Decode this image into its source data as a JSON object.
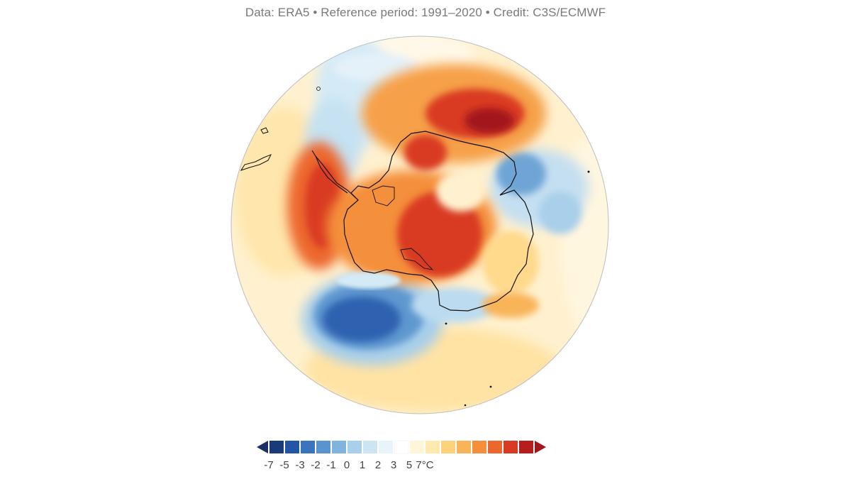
{
  "credit": "Data: ERA5 • Reference period: 1991–2020 • Credit: C3S/ECMWF",
  "map": {
    "projection": "south-polar-stereographic",
    "variable": "temperature anomaly"
  },
  "legend": {
    "unit": "°C",
    "colors": [
      "#1a3a7a",
      "#2355a6",
      "#3a73bf",
      "#5a93cf",
      "#80b4de",
      "#a8d0ec",
      "#cde4f3",
      "#e8f3fa",
      "#ffffff",
      "#fff6d8",
      "#ffe9ad",
      "#fcd27c",
      "#f9b458",
      "#f48f3b",
      "#ec672d",
      "#d93a22",
      "#b81d1d"
    ],
    "arrow_left_color": "#1a2f66",
    "arrow_right_color": "#a3151b",
    "tick_labels": [
      {
        "text": "-7",
        "index": 0
      },
      {
        "text": "-5",
        "index": 2
      },
      {
        "text": "-3",
        "index": 4
      },
      {
        "text": "-2",
        "index": 6
      },
      {
        "text": "-1",
        "index": 8
      },
      {
        "text": "0",
        "index": 10
      },
      {
        "text": "1",
        "index": 12
      },
      {
        "text": "2",
        "index": 14
      },
      {
        "text": "3",
        "index": 16
      },
      {
        "text": "5",
        "index": 18
      },
      {
        "text": "7°C",
        "index": 20
      }
    ]
  }
}
